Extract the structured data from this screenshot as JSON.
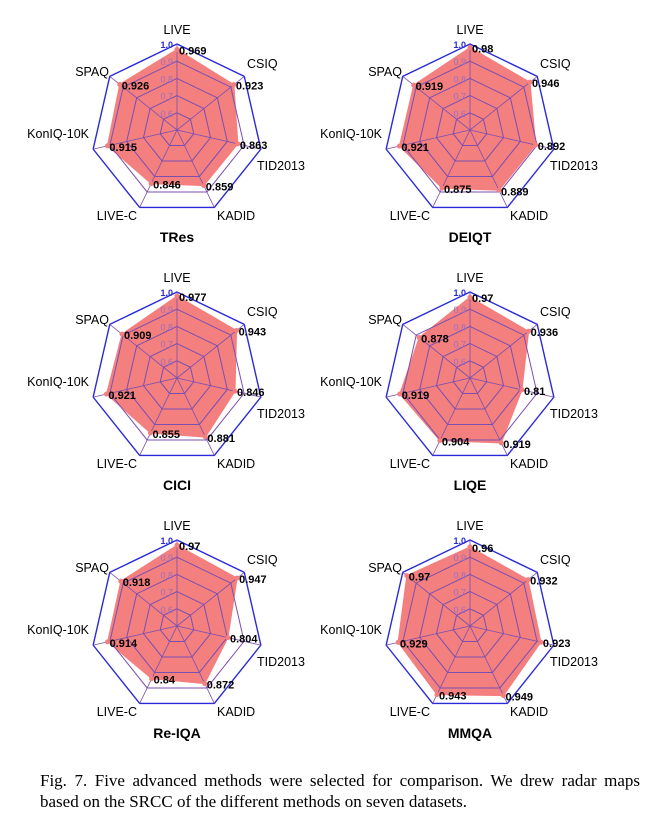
{
  "chart_data": [
    {
      "type": "radar",
      "title": "TRes",
      "axes": [
        "LIVE",
        "CSIQ",
        "TID2013",
        "KADID",
        "LIVE-C",
        "KonIQ-10K",
        "SPAQ"
      ],
      "values": [
        0.969,
        0.923,
        0.863,
        0.859,
        0.846,
        0.915,
        0.926
      ],
      "rings": [
        0.6,
        0.7,
        0.8,
        0.9,
        1.0
      ],
      "range": [
        0.5,
        1.0
      ]
    },
    {
      "type": "radar",
      "title": "DEIQT",
      "axes": [
        "LIVE",
        "CSIQ",
        "TID2013",
        "KADID",
        "LIVE-C",
        "KonIQ-10K",
        "SPAQ"
      ],
      "values": [
        0.98,
        0.946,
        0.892,
        0.889,
        0.875,
        0.921,
        0.919
      ],
      "rings": [
        0.6,
        0.7,
        0.8,
        0.9,
        1.0
      ],
      "range": [
        0.5,
        1.0
      ]
    },
    {
      "type": "radar",
      "title": "CICI",
      "axes": [
        "LIVE",
        "CSIQ",
        "TID2013",
        "KADID",
        "LIVE-C",
        "KonIQ-10K",
        "SPAQ"
      ],
      "values": [
        0.977,
        0.943,
        0.846,
        0.881,
        0.855,
        0.921,
        0.909
      ],
      "rings": [
        0.6,
        0.7,
        0.8,
        0.9,
        1.0
      ],
      "range": [
        0.5,
        1.0
      ]
    },
    {
      "type": "radar",
      "title": "LIQE",
      "axes": [
        "LIVE",
        "CSIQ",
        "TID2013",
        "KADID",
        "LIVE-C",
        "KonIQ-10K",
        "SPAQ"
      ],
      "values": [
        0.97,
        0.936,
        0.81,
        0.919,
        0.904,
        0.919,
        0.878
      ],
      "rings": [
        0.6,
        0.7,
        0.8,
        0.9,
        1.0
      ],
      "range": [
        0.5,
        1.0
      ]
    },
    {
      "type": "radar",
      "title": "Re-IQA",
      "axes": [
        "LIVE",
        "CSIQ",
        "TID2013",
        "KADID",
        "LIVE-C",
        "KonIQ-10K",
        "SPAQ"
      ],
      "values": [
        0.97,
        0.947,
        0.804,
        0.872,
        0.84,
        0.914,
        0.918
      ],
      "rings": [
        0.6,
        0.7,
        0.8,
        0.9,
        1.0
      ],
      "range": [
        0.5,
        1.0
      ]
    },
    {
      "type": "radar",
      "title": "MMQA",
      "axes": [
        "LIVE",
        "CSIQ",
        "TID2013",
        "KADID",
        "LIVE-C",
        "KonIQ-10K",
        "SPAQ"
      ],
      "values": [
        0.96,
        0.932,
        0.923,
        0.949,
        0.943,
        0.929,
        0.97
      ],
      "rings": [
        0.6,
        0.7,
        0.8,
        0.9,
        1.0
      ],
      "range": [
        0.5,
        1.0
      ]
    }
  ],
  "colors": {
    "fill": "#f47f7f",
    "outer": "#2a2ad8",
    "grid": "#7a4fb0",
    "ring_label": "#9a6fc0"
  },
  "caption": "Fig. 7.  Five advanced methods were selected for comparison. We drew radar maps based on the SRCC of the different methods on seven datasets."
}
